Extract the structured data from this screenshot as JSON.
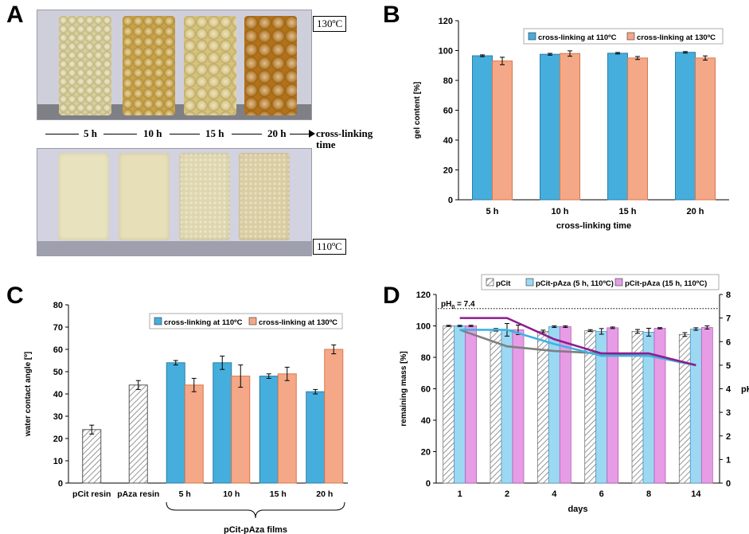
{
  "panel_A": {
    "letter": "A",
    "top_temp": "130ºC",
    "bottom_temp": "110ºC",
    "times": [
      "5 h",
      "10 h",
      "15 h",
      "20 h"
    ],
    "axis_label_line1": "cross-linking",
    "axis_label_line2": "time",
    "colors": {
      "top": [
        "#d9cf9a",
        "#c9a347",
        "#d6c27a",
        "#b27219"
      ],
      "bottom": [
        "#e8e2bf",
        "#e6dfb8",
        "#ddd5ac",
        "#d9cca0"
      ]
    }
  },
  "chart_data": [
    {
      "id": "B",
      "letter": "B",
      "type": "bar",
      "categories": [
        "5 h",
        "10 h",
        "15 h",
        "20 h"
      ],
      "series": [
        {
          "name": "cross-linking at 110ºC",
          "color": "#45aedd",
          "values": [
            96.5,
            97.5,
            98.2,
            98.8
          ],
          "errors": [
            0.6,
            0.6,
            0.5,
            0.5
          ]
        },
        {
          "name": "cross-linking at 130ºC",
          "color": "#f4a887",
          "values": [
            93,
            98,
            95,
            95
          ],
          "errors": [
            2.5,
            1.8,
            1.0,
            1.4
          ]
        }
      ],
      "xlabel": "cross-linking time",
      "ylabel": "gel content [%]",
      "ylim": [
        0,
        120
      ],
      "yticks": [
        0,
        20,
        40,
        60,
        80,
        100,
        120
      ],
      "legend": "top-right"
    },
    {
      "id": "C",
      "letter": "C",
      "type": "bar",
      "categories": [
        "pCit resin",
        "pAza resin",
        "5 h",
        "10 h",
        "15 h",
        "20 h"
      ],
      "resin_values": [
        24,
        44
      ],
      "resin_errors": [
        2,
        2
      ],
      "series": [
        {
          "name": "cross-linking at 110ºC",
          "color": "#45aedd",
          "values": [
            null,
            null,
            54,
            54,
            48,
            41
          ],
          "errors": [
            0,
            0,
            1,
            3,
            1,
            1
          ]
        },
        {
          "name": "cross-linking at 130ºC",
          "color": "#f4a887",
          "values": [
            null,
            null,
            44,
            48,
            49,
            60
          ],
          "errors": [
            0,
            0,
            3,
            5,
            3,
            2
          ]
        }
      ],
      "group_label": "pCit-pAza films",
      "xlabel": "",
      "ylabel": "water contact angle [º]",
      "ylim": [
        0,
        80
      ],
      "yticks": [
        0,
        10,
        20,
        30,
        40,
        50,
        60,
        70,
        80
      ],
      "legend": "top-right"
    },
    {
      "id": "D",
      "letter": "D",
      "type": "bar",
      "categories": [
        "1",
        "2",
        "4",
        "6",
        "8",
        "14"
      ],
      "series": [
        {
          "name": "pCit",
          "color": "#d9d9d9",
          "hatched": true,
          "values": [
            100,
            97.5,
            96.5,
            97,
            96.5,
            94.5
          ],
          "errors": [
            0.4,
            0.8,
            0.8,
            0.6,
            1.2,
            1.2
          ]
        },
        {
          "name": "pCit-pAza (5 h, 110ºC)",
          "color": "#9dd8f3",
          "values": [
            100,
            97.5,
            99.5,
            96.5,
            96,
            98
          ],
          "errors": [
            0.4,
            4,
            0.5,
            1.8,
            2.5,
            0.8
          ]
        },
        {
          "name": "pCit-pAza (15 h, 110ºC)",
          "color": "#e79de6",
          "values": [
            100,
            97.5,
            99.5,
            98.8,
            98.5,
            99
          ],
          "errors": [
            0.4,
            3,
            0.5,
            0.5,
            0.4,
            1
          ]
        }
      ],
      "ph_lines": [
        {
          "name": "pCit",
          "color": "#7f7f7f",
          "values": [
            6.5,
            5.8,
            5.6,
            5.5,
            5.4,
            5.0
          ]
        },
        {
          "name": "pCit-pAza (5 h, 110ºC)",
          "color": "#3fb2e2",
          "values": [
            6.5,
            6.5,
            5.9,
            5.4,
            5.4,
            5.0
          ]
        },
        {
          "name": "pCit-pAza (15 h, 110ºC)",
          "color": "#8e1d8e",
          "values": [
            7.0,
            7.0,
            6.1,
            5.5,
            5.5,
            5.0
          ]
        }
      ],
      "ph0_label": "pH",
      "ph0_sub": "0",
      "ph0_value_text": " = 7.4",
      "ph0": 7.4,
      "xlabel": "days",
      "ylabel": "remaining mass [%]",
      "y2label": "pH",
      "ylim": [
        0,
        120
      ],
      "yticks": [
        0,
        20,
        40,
        60,
        80,
        100,
        120
      ],
      "y2lim": [
        0,
        8
      ],
      "y2ticks": [
        0,
        1,
        2,
        3,
        4,
        5,
        6,
        7,
        8
      ],
      "legend": "top"
    }
  ]
}
